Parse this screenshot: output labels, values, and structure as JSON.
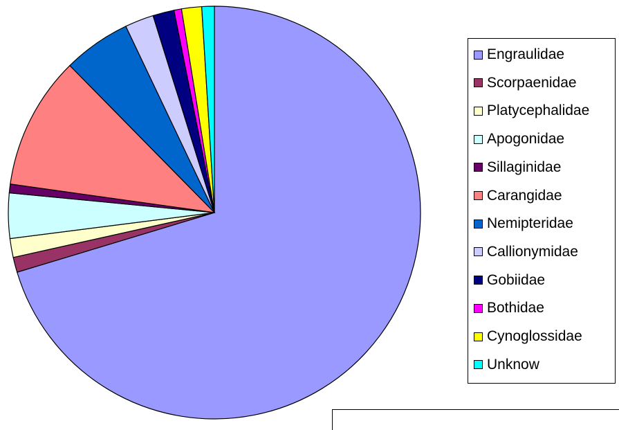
{
  "chart_data": {
    "type": "pie",
    "title": "",
    "legend_position": "right",
    "start_angle_deg": 90,
    "direction": "clockwise",
    "slices": [
      {
        "label": "Engraulidae",
        "value": 71.6,
        "color": "#9999FF"
      },
      {
        "label": "Scorpaenidae",
        "value": 1.2,
        "color": "#993366"
      },
      {
        "label": "Platycephalidae",
        "value": 1.5,
        "color": "#FFFFCC"
      },
      {
        "label": "Apogonidae",
        "value": 3.6,
        "color": "#CCFFFF"
      },
      {
        "label": "Sillaginidae",
        "value": 0.7,
        "color": "#660066"
      },
      {
        "label": "Carangidae",
        "value": 10.6,
        "color": "#FF8080"
      },
      {
        "label": "Nemipteridae",
        "value": 5.4,
        "color": "#0066CC"
      },
      {
        "label": "Callionymidae",
        "value": 2.3,
        "color": "#CCCCFF"
      },
      {
        "label": "Gobiidae",
        "value": 1.7,
        "color": "#000080"
      },
      {
        "label": "Bothidae",
        "value": 0.6,
        "color": "#FF00FF"
      },
      {
        "label": "Cynoglossidae",
        "value": 1.6,
        "color": "#FFFF00"
      },
      {
        "label": "Unknow",
        "value": 1.0,
        "color": "#00FFFF"
      }
    ]
  }
}
